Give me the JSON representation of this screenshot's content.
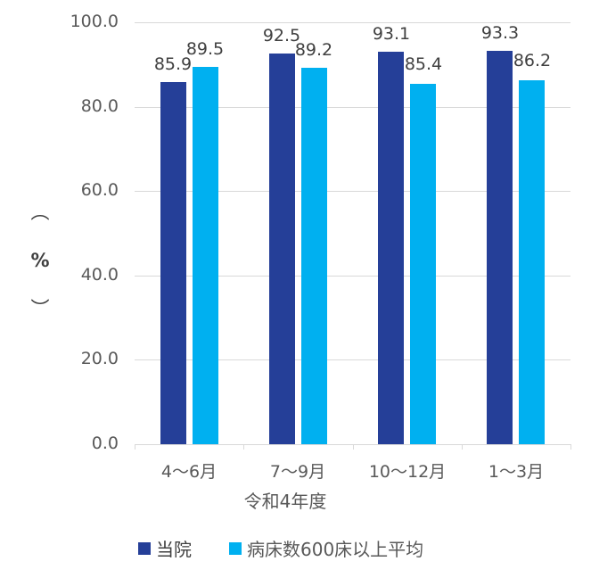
{
  "chart_data": {
    "type": "bar",
    "title": "",
    "xlabel": "令和4年度",
    "ylabel": "（%）",
    "ylim": [
      0,
      100
    ],
    "yticks": [
      "0.0",
      "20.0",
      "40.0",
      "60.0",
      "80.0",
      "100.0"
    ],
    "grid": true,
    "legend_position": "bottom",
    "categories": [
      "4〜6月",
      "7〜9月",
      "10〜12月",
      "1〜3月"
    ],
    "series": [
      {
        "name": "当院",
        "color": "#253f98",
        "values": [
          85.9,
          92.5,
          93.1,
          93.3
        ],
        "labels": [
          "85.9",
          "92.5",
          "93.1",
          "93.3"
        ]
      },
      {
        "name": "病床数600床以上平均",
        "color": "#00b0f0",
        "values": [
          89.5,
          89.2,
          85.4,
          86.2
        ],
        "labels": [
          "89.5",
          "89.2",
          "85.4",
          "86.2"
        ]
      }
    ]
  },
  "axis": {
    "ylabel_top": "︵",
    "ylabel_mid": "%",
    "ylabel_bot": "︶",
    "xgroup_label": "令和4年度"
  },
  "legend": {
    "items": [
      {
        "label": "当院",
        "color": "#253f98"
      },
      {
        "label": "病床数600床以上平均",
        "color": "#00b0f0"
      }
    ]
  }
}
